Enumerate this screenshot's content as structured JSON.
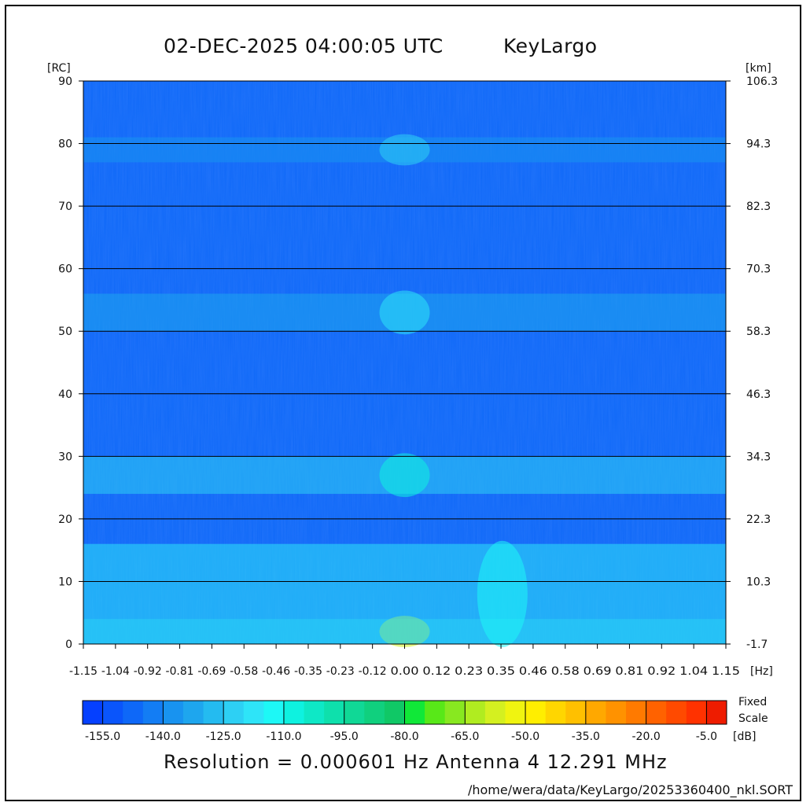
{
  "header": {
    "timestamp": "02-DEC-2025 04:00:05 UTC",
    "site": "KeyLargo"
  },
  "footer": {
    "resolution_line": "Resolution = 0.000601 Hz   Antenna  4   12.291 MHz",
    "file_path": "/home/wera/data/KeyLargo/20253360400_nkl.SORT"
  },
  "colorbar": {
    "fixed_label": "Fixed",
    "scale_label": "Scale",
    "unit": "[dB]",
    "ticks": [
      "-155.0",
      "-140.0",
      "-125.0",
      "-110.0",
      "-95.0",
      "-80.0",
      "-65.0",
      "-50.0",
      "-35.0",
      "-20.0",
      "-5.0"
    ],
    "colors": [
      "#0540ff",
      "#0a55fb",
      "#0e68f8",
      "#137df4",
      "#1893f0",
      "#1ea6ee",
      "#24bbf0",
      "#2dd0f4",
      "#2ee4f8",
      "#1df8f6",
      "#0ef2e0",
      "#0ee8c6",
      "#0ee0ac",
      "#10d896",
      "#10d07e",
      "#10c866",
      "#10e838",
      "#58e818",
      "#88e820",
      "#b0ec20",
      "#d4f020",
      "#f0f410",
      "#ffee00",
      "#ffd600",
      "#ffc000",
      "#ffa800",
      "#ff9200",
      "#ff7a00",
      "#ff6200",
      "#ff4a00",
      "#ff3200",
      "#ee1c00"
    ]
  },
  "chart_data": {
    "type": "heatmap",
    "title": "02-DEC-2025 04:00:05 UTC",
    "xlabel": "[Hz]",
    "ylabel_left": "[RC]",
    "ylabel_right": "[km]",
    "x_ticks": [
      "-1.15",
      "-1.04",
      "-0.92",
      "-0.81",
      "-0.69",
      "-0.58",
      "-0.46",
      "-0.35",
      "-0.23",
      "-0.12",
      "0.00",
      "0.12",
      "0.23",
      "0.35",
      "0.46",
      "0.58",
      "0.69",
      "0.81",
      "0.92",
      "1.04",
      "1.15"
    ],
    "xlim": [
      -1.15,
      1.15
    ],
    "y_ticks_left": [
      "0",
      "10",
      "20",
      "30",
      "40",
      "50",
      "60",
      "70",
      "80",
      "90"
    ],
    "y_ticks_right": [
      "-1.7",
      "10.3",
      "22.3",
      "34.3",
      "46.3",
      "58.3",
      "70.3",
      "82.3",
      "94.3",
      "106.3"
    ],
    "ylim": [
      0,
      90
    ],
    "zlim_db": [
      -160,
      0
    ],
    "grid": true,
    "background_level_db": -150,
    "features": [
      {
        "rc_center": 27,
        "rc_half_width": 3,
        "level_db": -125,
        "peak_doppler_hz": 0.0,
        "peak_level_db": -110
      },
      {
        "rc_center": 53,
        "rc_half_width": 3,
        "level_db": -135,
        "peak_doppler_hz": 0.0,
        "peak_level_db": -120
      },
      {
        "rc_center": 79,
        "rc_half_width": 2,
        "level_db": -140,
        "peak_doppler_hz": 0.0,
        "peak_level_db": -125
      },
      {
        "rc_center": 2,
        "rc_half_width": 2,
        "level_db": -130,
        "peak_doppler_hz": 0.0,
        "peak_level_db": -60
      },
      {
        "rc_center": 8,
        "rc_half_width": 8,
        "level_db": -120,
        "peak_doppler_hz": 0.35,
        "peak_level_db": -115
      }
    ]
  }
}
